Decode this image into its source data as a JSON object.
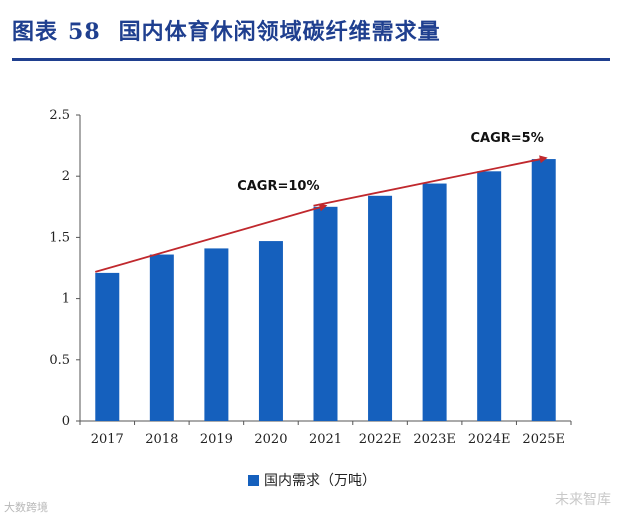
{
  "header": {
    "figure_label": "图表",
    "figure_number": "58",
    "title": "国内体育休闲领域碳纤维需求量"
  },
  "chart_data": {
    "type": "bar",
    "categories": [
      "2017",
      "2018",
      "2019",
      "2020",
      "2021",
      "2022E",
      "2023E",
      "2024E",
      "2025E"
    ],
    "series": [
      {
        "name": "国内需求（万吨）",
        "values": [
          1.21,
          1.36,
          1.41,
          1.47,
          1.75,
          1.84,
          1.94,
          2.04,
          2.14
        ]
      }
    ],
    "y_ticks": [
      "0",
      "0.5",
      "1",
      "1.5",
      "2",
      "2.5"
    ],
    "ylim": [
      0,
      2.5
    ],
    "grid": false,
    "legend_position": "bottom",
    "annotations": [
      {
        "text": "CAGR=10%",
        "from": "2017",
        "to": "2021"
      },
      {
        "text": "CAGR=5%",
        "from": "2021",
        "to": "2025E"
      }
    ],
    "colors": {
      "bar": "#1560bd",
      "trend_arrow": "#c0282d",
      "axis": "#555555"
    }
  },
  "watermarks": {
    "left": "大数跨境",
    "right": "未来智库"
  }
}
